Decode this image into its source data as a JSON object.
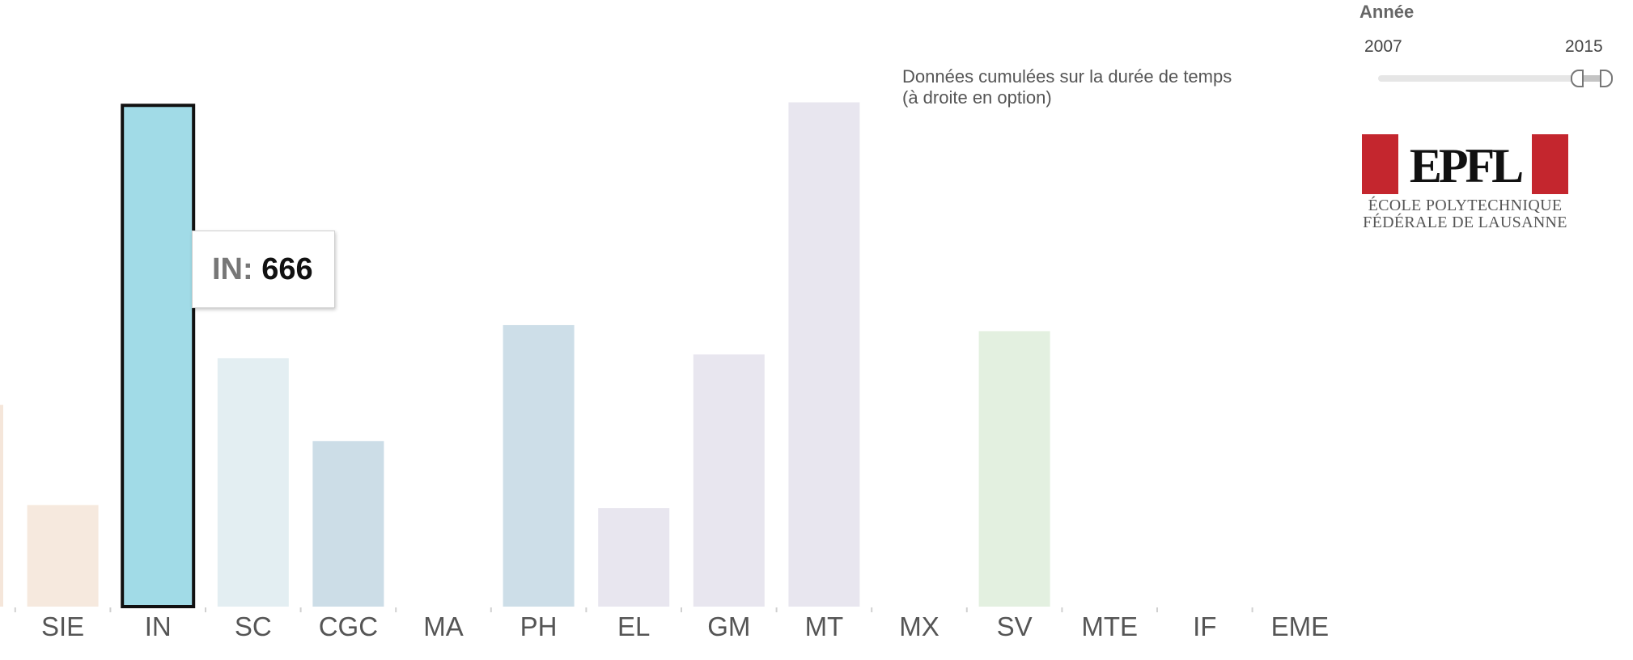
{
  "chart_data": {
    "type": "bar",
    "categories": [
      "",
      "SIE",
      "IN",
      "SC",
      "CGC",
      "MA",
      "PH",
      "EL",
      "GM",
      "MT",
      "MX",
      "SV",
      "MTE",
      "IF",
      "EME"
    ],
    "values": [
      268,
      135,
      666,
      330,
      220,
      0,
      374,
      131,
      335,
      670,
      0,
      366,
      0,
      0,
      0
    ],
    "colors": [
      "#f5e6da",
      "#f6e9de",
      "#a1dbe7",
      "#e3eef2",
      "#ccdde7",
      "#ffffff",
      "#cddee8",
      "#e8e6ef",
      "#e8e6ef",
      "#e8e6ef",
      "#ffffff",
      "#e3f0e0",
      "#ffffff",
      "#ffffff",
      "#ffffff"
    ],
    "highlight_category": "IN",
    "ylim": [
      0,
      720
    ],
    "title": "",
    "xlabel": "",
    "ylabel": ""
  },
  "tooltip": {
    "category": "IN:",
    "value": "666"
  },
  "note": "Données cumulées sur la durée de temps (à droite en option)",
  "filter": {
    "title": "Année",
    "range_min": "2007",
    "range_max": "2015",
    "selected_from": 2014,
    "selected_to": 2015
  },
  "logo": {
    "mark": "EPFL",
    "line1": "ÉCOLE POLYTECHNIQUE",
    "line2": "FÉDÉRALE DE LAUSANNE"
  }
}
